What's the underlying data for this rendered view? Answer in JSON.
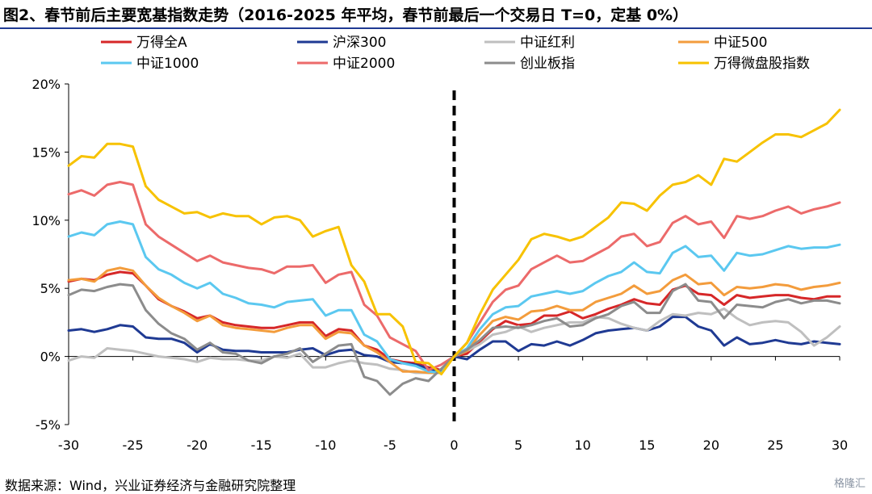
{
  "title": "图2、春节前后主要宽基指数走势（2016-2025 年平均，春节前最后一个交易日 T=0，定基 0%）",
  "source": "数据来源：Wind，兴业证券经济与金融研究院整理",
  "watermark": "格隆汇",
  "chart_data": {
    "type": "line",
    "xlabel": "",
    "ylabel": "",
    "xlim": [
      -30,
      30
    ],
    "ylim": [
      -5,
      20
    ],
    "x_ticks": [
      "-30",
      "-25",
      "-20",
      "-15",
      "-10",
      "-5",
      "0",
      "5",
      "10",
      "15",
      "20",
      "25",
      "30"
    ],
    "y_ticks": [
      "-5%",
      "0%",
      "5%",
      "10%",
      "15%",
      "20%"
    ],
    "legend_position": "top",
    "reference_line": {
      "x": 0,
      "style": "dashed"
    },
    "x": [
      -30,
      -29,
      -28,
      -27,
      -26,
      -25,
      -24,
      -23,
      -22,
      -21,
      -20,
      -19,
      -18,
      -17,
      -16,
      -15,
      -14,
      -13,
      -12,
      -11,
      -10,
      -9,
      -8,
      -7,
      -6,
      -5,
      -4,
      -3,
      -2,
      -1,
      0,
      1,
      2,
      3,
      4,
      5,
      6,
      7,
      8,
      9,
      10,
      11,
      12,
      13,
      14,
      15,
      16,
      17,
      18,
      19,
      20,
      21,
      22,
      23,
      24,
      25,
      26,
      27,
      28,
      29,
      30
    ],
    "series": [
      {
        "name": "万得全A",
        "color": "#d62728",
        "values": [
          5.5,
          5.7,
          5.6,
          6.0,
          6.2,
          6.1,
          5.2,
          4.2,
          3.7,
          3.3,
          2.8,
          3.0,
          2.5,
          2.3,
          2.2,
          2.1,
          2.1,
          2.3,
          2.5,
          2.5,
          1.5,
          2.0,
          1.9,
          0.8,
          0.5,
          -0.2,
          -0.4,
          -0.5,
          -0.8,
          -1.0,
          0,
          0.2,
          1.1,
          2.0,
          2.6,
          2.3,
          2.4,
          3.0,
          3.0,
          3.3,
          2.8,
          3.1,
          3.5,
          3.8,
          4.2,
          3.9,
          3.8,
          4.9,
          5.2,
          4.6,
          4.5,
          3.8,
          4.5,
          4.3,
          4.4,
          4.5,
          4.5,
          4.3,
          4.2,
          4.4,
          4.4
        ]
      },
      {
        "name": "沪深300",
        "color": "#1f3a93",
        "values": [
          1.9,
          2.0,
          1.8,
          2.0,
          2.3,
          2.2,
          1.4,
          1.3,
          1.3,
          1.0,
          0.3,
          0.9,
          0.5,
          0.4,
          0.4,
          0.3,
          0.3,
          0.3,
          0.5,
          0.6,
          0.1,
          0.4,
          0.5,
          0.1,
          0.0,
          -0.4,
          -0.5,
          -0.6,
          -0.9,
          -1.1,
          0,
          -0.2,
          0.5,
          1.1,
          1.1,
          0.4,
          0.9,
          0.8,
          1.1,
          0.8,
          1.2,
          1.7,
          1.9,
          2.0,
          2.1,
          1.9,
          2.2,
          2.9,
          2.9,
          2.2,
          1.9,
          0.8,
          1.4,
          0.9,
          1.0,
          1.2,
          1.0,
          0.9,
          1.1,
          1.0,
          0.9
        ]
      },
      {
        "name": "中证红利",
        "color": "#bfbfbf",
        "values": [
          -0.3,
          0.0,
          -0.1,
          0.6,
          0.5,
          0.4,
          0.2,
          0.0,
          -0.1,
          -0.2,
          -0.4,
          -0.1,
          -0.2,
          -0.2,
          -0.3,
          -0.3,
          0.0,
          -0.1,
          0.2,
          -0.8,
          -0.8,
          -0.5,
          -0.3,
          -0.5,
          -0.6,
          -0.9,
          -1.0,
          -1.2,
          -1.2,
          -1.2,
          0,
          0.4,
          0.9,
          1.6,
          1.8,
          2.2,
          1.8,
          2.1,
          2.3,
          2.5,
          2.5,
          2.9,
          2.8,
          2.4,
          2.1,
          1.9,
          2.6,
          3.1,
          3.0,
          3.2,
          3.1,
          3.5,
          2.8,
          2.3,
          2.5,
          2.6,
          2.5,
          1.8,
          0.8,
          1.4,
          2.2
        ]
      },
      {
        "name": "中证500",
        "color": "#f39c3c",
        "values": [
          5.6,
          5.7,
          5.5,
          6.3,
          6.5,
          6.3,
          5.2,
          4.3,
          3.7,
          3.2,
          2.6,
          3.0,
          2.3,
          2.1,
          2.0,
          1.9,
          1.8,
          2.1,
          2.3,
          2.3,
          1.3,
          1.8,
          1.7,
          0.8,
          0.3,
          -0.4,
          -1.1,
          -1.1,
          -1.2,
          -1.2,
          0,
          0.4,
          1.6,
          2.6,
          2.9,
          2.7,
          3.3,
          3.4,
          3.7,
          3.4,
          3.4,
          4.0,
          4.3,
          4.6,
          5.2,
          4.6,
          4.8,
          5.6,
          6.0,
          5.3,
          5.4,
          4.5,
          5.1,
          5.0,
          5.1,
          5.3,
          5.2,
          4.9,
          5.1,
          5.2,
          5.4
        ]
      },
      {
        "name": "中证1000",
        "color": "#5bc8f0",
        "values": [
          8.8,
          9.1,
          8.9,
          9.7,
          9.9,
          9.7,
          7.3,
          6.4,
          6.0,
          5.4,
          5.0,
          5.4,
          4.6,
          4.3,
          3.9,
          3.8,
          3.6,
          4.0,
          4.1,
          4.2,
          3.0,
          3.4,
          3.4,
          1.6,
          1.1,
          -0.2,
          -0.5,
          -0.7,
          -1.1,
          -1.2,
          0,
          0.6,
          2.0,
          3.1,
          3.6,
          3.7,
          4.4,
          4.6,
          4.8,
          4.6,
          4.8,
          5.4,
          5.9,
          6.2,
          6.9,
          6.2,
          6.1,
          7.6,
          8.1,
          7.3,
          7.4,
          6.3,
          7.6,
          7.4,
          7.5,
          7.8,
          8.1,
          7.9,
          8.0,
          8.0,
          8.2
        ]
      },
      {
        "name": "中证2000",
        "color": "#ec6a6a",
        "values": [
          11.9,
          12.2,
          11.8,
          12.6,
          12.8,
          12.6,
          9.7,
          8.8,
          8.2,
          7.6,
          7.0,
          7.4,
          6.9,
          6.7,
          6.5,
          6.4,
          6.1,
          6.6,
          6.6,
          6.7,
          5.4,
          6.0,
          6.2,
          3.8,
          3.0,
          1.4,
          0.9,
          0.4,
          -1.0,
          -0.6,
          0,
          1.0,
          2.5,
          4.0,
          4.9,
          5.2,
          6.4,
          6.9,
          7.4,
          6.9,
          7.0,
          7.5,
          8.0,
          8.8,
          9.0,
          8.1,
          8.4,
          9.8,
          10.3,
          9.7,
          9.9,
          8.7,
          10.3,
          10.1,
          10.3,
          10.7,
          11.0,
          10.5,
          10.8,
          11.0,
          11.3
        ]
      },
      {
        "name": "创业板指",
        "color": "#8c8c8c",
        "values": [
          4.5,
          4.9,
          4.8,
          5.1,
          5.3,
          5.2,
          3.4,
          2.4,
          1.7,
          1.3,
          0.5,
          1.0,
          0.3,
          0.2,
          -0.3,
          -0.5,
          0.0,
          0.2,
          0.6,
          -0.4,
          0.2,
          0.8,
          0.9,
          -1.5,
          -1.8,
          -2.8,
          -2.0,
          -1.6,
          -1.8,
          -0.9,
          0,
          0.5,
          1.2,
          2.1,
          2.2,
          2.1,
          2.3,
          2.6,
          2.8,
          2.2,
          2.3,
          2.8,
          3.1,
          3.7,
          4.0,
          3.2,
          3.2,
          4.8,
          5.3,
          4.1,
          4.0,
          2.8,
          3.8,
          3.7,
          3.6,
          4.0,
          4.2,
          3.9,
          4.1,
          4.1,
          3.9
        ]
      },
      {
        "name": "万得微盘股指数",
        "color": "#f7c200",
        "values": [
          14.0,
          14.7,
          14.6,
          15.6,
          15.6,
          15.4,
          12.5,
          11.5,
          11.0,
          10.5,
          10.6,
          10.2,
          10.5,
          10.3,
          10.3,
          9.7,
          10.2,
          10.3,
          10.0,
          8.8,
          9.2,
          9.5,
          6.7,
          5.5,
          3.1,
          3.1,
          2.2,
          -0.4,
          -0.5,
          -1.3,
          0,
          1.0,
          3.1,
          4.9,
          6.0,
          7.1,
          8.6,
          9.0,
          8.8,
          8.5,
          8.8,
          9.5,
          10.2,
          11.3,
          11.2,
          10.7,
          11.8,
          12.6,
          12.8,
          13.3,
          12.6,
          14.5,
          14.3,
          15.0,
          15.7,
          16.3,
          16.3,
          16.1,
          16.6,
          17.1,
          18.1
        ]
      }
    ]
  }
}
